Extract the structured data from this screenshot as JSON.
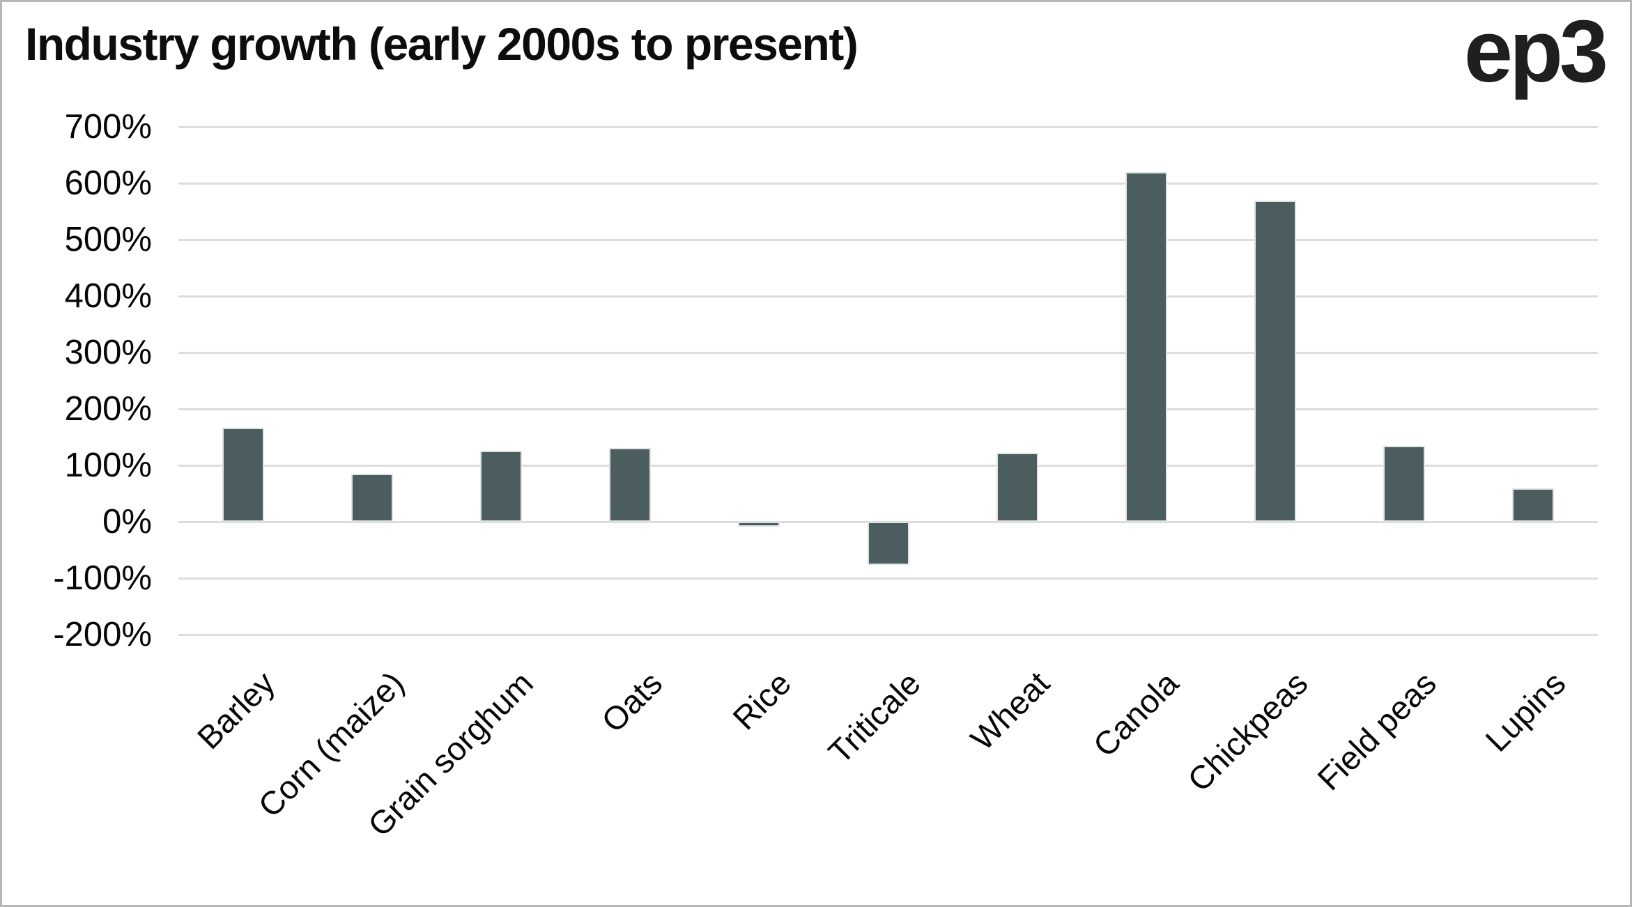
{
  "page": {
    "background": "#ffffff",
    "border_color": "#b7b7b7"
  },
  "header": {
    "title": "Industry growth (early 2000s to present)",
    "logo_text": "ep3"
  },
  "chart_data": {
    "type": "bar",
    "title": "Industry growth (early 2000s to present)",
    "categories": [
      "Barley",
      "Corn (maize)",
      "Grain sorghum",
      "Oats",
      "Rice",
      "Triticale",
      "Wheat",
      "Canola",
      "Chickpeas",
      "Field peas",
      "Lupins"
    ],
    "values": [
      167,
      85,
      126,
      131,
      -9,
      -77,
      122,
      620,
      569,
      135,
      59
    ],
    "value_unit": "%",
    "xlabel": "",
    "ylabel": "",
    "ylim": [
      -200,
      700
    ],
    "ytick_step": 100,
    "yticks": [
      700,
      600,
      500,
      400,
      300,
      200,
      100,
      0,
      -100,
      -200
    ],
    "ytick_labels": [
      "700%",
      "600%",
      "500%",
      "400%",
      "300%",
      "200%",
      "100%",
      "0%",
      "-100%",
      "-200%"
    ],
    "grid": "horizontal-only",
    "legend": "none",
    "x_label_rotation_deg": -45,
    "bar_color": "#4b5d5e",
    "bar_border_color": "#dfe3e3",
    "gridline_color": "#dcdcdc",
    "text_color": "#060606"
  }
}
